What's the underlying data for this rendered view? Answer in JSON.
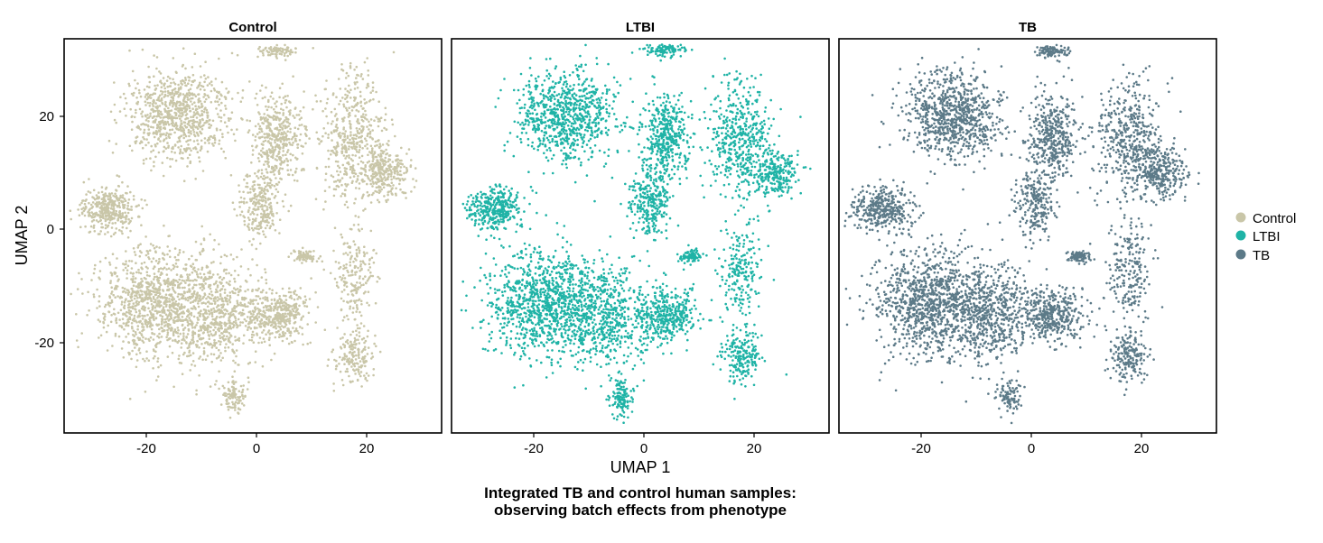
{
  "chart_data": {
    "type": "scatter",
    "facets": [
      "Control",
      "LTBI",
      "TB"
    ],
    "xlabel": "UMAP 1",
    "ylabel": "UMAP 2",
    "xlim": [
      -35,
      34
    ],
    "ylim": [
      -36,
      31
    ],
    "x_ticks": [
      -20,
      0,
      20
    ],
    "y_ticks": [
      20,
      0,
      -20
    ],
    "caption_line1": "Integrated TB and control human samples:",
    "caption_line2": "observing batch effects from phenotype",
    "legend": {
      "placement": "right",
      "entries": [
        {
          "label": "Control",
          "color": "#c9c6a8"
        },
        {
          "label": "LTBI",
          "color": "#1fb3a6"
        },
        {
          "label": "TB",
          "color": "#5c7a88"
        }
      ]
    },
    "clusters": [
      {
        "cx": -14,
        "cy": 18,
        "sx": 6,
        "sy": 5,
        "weight": 0.16
      },
      {
        "cx": -27,
        "cy": 2,
        "sx": 3.5,
        "sy": 2.5,
        "weight": 0.07
      },
      {
        "cx": -18,
        "cy": -14,
        "sx": 7,
        "sy": 6,
        "weight": 0.2
      },
      {
        "cx": -7,
        "cy": -16,
        "sx": 5,
        "sy": 6,
        "weight": 0.1
      },
      {
        "cx": 4,
        "cy": 14,
        "sx": 3,
        "sy": 5,
        "weight": 0.08
      },
      {
        "cx": 1,
        "cy": 3,
        "sx": 2.5,
        "sy": 4,
        "weight": 0.05
      },
      {
        "cx": 4,
        "cy": -16,
        "sx": 4,
        "sy": 3,
        "weight": 0.08
      },
      {
        "cx": 9,
        "cy": -6,
        "sx": 1.5,
        "sy": 0.7,
        "weight": 0.015
      },
      {
        "cx": -4,
        "cy": -30,
        "sx": 1.5,
        "sy": 2,
        "weight": 0.02
      },
      {
        "cx": 4,
        "cy": 29,
        "sx": 2.5,
        "sy": 0.8,
        "weight": 0.02
      },
      {
        "cx": 18,
        "cy": 14,
        "sx": 4,
        "sy": 7,
        "weight": 0.09
      },
      {
        "cx": 24,
        "cy": 8,
        "sx": 3,
        "sy": 3,
        "weight": 0.05
      },
      {
        "cx": 18,
        "cy": -9,
        "sx": 2.5,
        "sy": 6,
        "weight": 0.04
      },
      {
        "cx": 18,
        "cy": -23,
        "sx": 2.5,
        "sy": 3,
        "weight": 0.035
      }
    ],
    "points_per_panel": 5200
  }
}
